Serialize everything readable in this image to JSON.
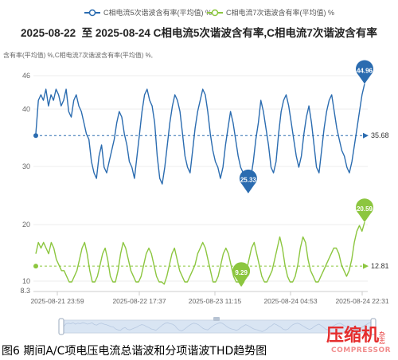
{
  "chart_data": {
    "type": "line",
    "title": "2025-08-22  至 2025-08-24 C相电流5次谐波含有率,C相电流7次谐波含有率",
    "legend": [
      {
        "name": "C相电流5次谐波含有率(平均值) %",
        "color": "#2b6cb0"
      },
      {
        "name": "C相电流7次谐波含有率(平均值) %",
        "color": "#8cc63f"
      }
    ],
    "legend_position": "top-center",
    "x_tick_labels": [
      "2025-08-21 23:59",
      "2025-08-22 17:37",
      "2025-08-23 11:15",
      "2025-08-24 04:53",
      "2025-08-24 22:31"
    ],
    "panels": [
      {
        "ylabel": "含有率(平均值) %,C相电流7次谐波含有率(平均值) %,",
        "series_name": "C相电流5次谐波含有率(平均值) %",
        "color": "#2b6cb0",
        "y_ticks": [
          "46",
          "40",
          "30"
        ],
        "ylim": [
          26,
          46
        ],
        "reference_line": {
          "value": 35.68,
          "label": "35.68"
        },
        "max_point": {
          "value": 44.96,
          "label": "44.96"
        },
        "min_point": {
          "value": 25.33,
          "label": "25.33"
        },
        "values": [
          36,
          42,
          43,
          42,
          44,
          41,
          43,
          42,
          44,
          43,
          41,
          42,
          44,
          40,
          39,
          42,
          43,
          41,
          40,
          38,
          36,
          35,
          31,
          29,
          28,
          32,
          34,
          30,
          29,
          31,
          33,
          35,
          38,
          40,
          39,
          36,
          34,
          31,
          30,
          28,
          32,
          36,
          40,
          43,
          44,
          42,
          41,
          38,
          32,
          28,
          27,
          30,
          34,
          38,
          41,
          43,
          42,
          40,
          36,
          32,
          30,
          29,
          33,
          37,
          40,
          42,
          44,
          43,
          40,
          36,
          33,
          31,
          30,
          28,
          30,
          34,
          37,
          40,
          38,
          35,
          32,
          30,
          29,
          27,
          25.5,
          28,
          31,
          35,
          38,
          42,
          40,
          37,
          34,
          30,
          29,
          31,
          36,
          40,
          42,
          43,
          41,
          38,
          35,
          32,
          30,
          32,
          36,
          39,
          41,
          38,
          34,
          30,
          29,
          33,
          37,
          40,
          42,
          43,
          40,
          37,
          35,
          33,
          32,
          30,
          29,
          31,
          34,
          37,
          40,
          43,
          44.96
        ]
      },
      {
        "series_name": "C相电流7次谐波含有率(平均值) %",
        "color": "#8cc63f",
        "y_ticks": [
          "20",
          "10",
          "8.3"
        ],
        "ylim": [
          8.3,
          23
        ],
        "reference_line": {
          "value": 12.81,
          "label": "12.81"
        },
        "max_point": {
          "value": 20.59,
          "label": "20.59"
        },
        "min_point": {
          "value": 9.29,
          "label": "9.29"
        },
        "values": [
          15,
          17,
          16,
          17,
          16,
          15,
          17,
          16,
          14,
          13,
          12,
          12,
          11,
          10,
          10,
          11,
          12,
          14,
          16,
          17,
          15,
          12,
          10,
          10,
          11,
          13,
          15,
          16,
          14,
          11,
          10,
          10,
          12,
          15,
          17,
          16,
          14,
          12,
          11,
          10,
          10,
          11,
          13,
          15,
          16,
          15,
          13,
          11,
          10,
          10,
          9.6,
          11,
          13,
          15,
          16,
          14,
          12,
          11,
          10,
          10,
          11,
          12,
          13,
          15,
          16,
          17,
          16,
          14,
          12,
          10,
          10,
          11,
          13,
          15,
          16,
          15,
          13,
          11,
          10,
          10,
          9.29,
          10,
          12,
          14,
          16,
          17,
          15,
          13,
          11,
          10,
          10,
          11,
          12,
          14,
          16,
          18,
          16,
          13,
          11,
          10,
          10,
          11,
          13,
          16,
          18,
          17,
          14,
          12,
          11,
          10,
          10,
          11,
          12,
          13,
          14,
          15,
          16,
          16,
          15,
          13,
          12,
          11,
          12,
          14,
          17,
          19,
          20,
          19,
          20.59
        ]
      }
    ]
  },
  "caption": "图6 期间A/C项电压电流总谐波和分项谐波THD趋势图",
  "watermark": {
    "main": "压缩机",
    "side": "杂志",
    "sub": "COMPRESSOR",
    "color": "#e52d2d"
  }
}
